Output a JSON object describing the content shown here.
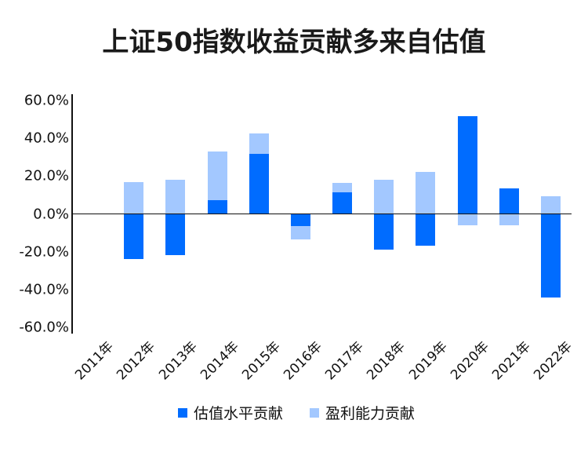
{
  "title": "上证50指数收益贡献多来自估值",
  "colors": {
    "valuation": "#006CFF",
    "earnings": "#A3C8FF",
    "axis": "#111111"
  },
  "legend": [
    {
      "label": "估值水平贡献",
      "color": "#006CFF"
    },
    {
      "label": "盈利能力贡献",
      "color": "#A3C8FF"
    }
  ],
  "y_ticks": [
    "60.0%",
    "40.0%",
    "20.0%",
    "0.0%",
    "-20.0%",
    "-40.0%",
    "-60.0%"
  ],
  "chart_data": {
    "type": "bar",
    "stacked": true,
    "title": "上证50指数收益贡献多来自估值",
    "xlabel": "",
    "ylabel": "",
    "ylim": [
      -60,
      60
    ],
    "y_tick_values": [
      60,
      40,
      20,
      0,
      -20,
      -40,
      -60
    ],
    "y_tick_format": "percent_1dp",
    "grid": false,
    "legend_position": "bottom",
    "categories": [
      "2011年",
      "2012年",
      "2013年",
      "2014年",
      "2015年",
      "2016年",
      "2017年",
      "2018年",
      "2019年",
      "2020年",
      "2021年",
      "2022年"
    ],
    "series": [
      {
        "name": "估值水平贡献",
        "color": "#006CFF",
        "values": [
          0,
          -23.8,
          -21.6,
          7.1,
          31.7,
          -6.4,
          11.3,
          -18.7,
          -16.6,
          51.6,
          13.3,
          -44.1
        ]
      },
      {
        "name": "盈利能力贡献",
        "color": "#A3C8FF",
        "values": [
          0,
          16.6,
          18.0,
          25.8,
          10.9,
          -7.0,
          5.1,
          17.9,
          22.3,
          -6.1,
          -6.1,
          9.2
        ]
      }
    ]
  }
}
